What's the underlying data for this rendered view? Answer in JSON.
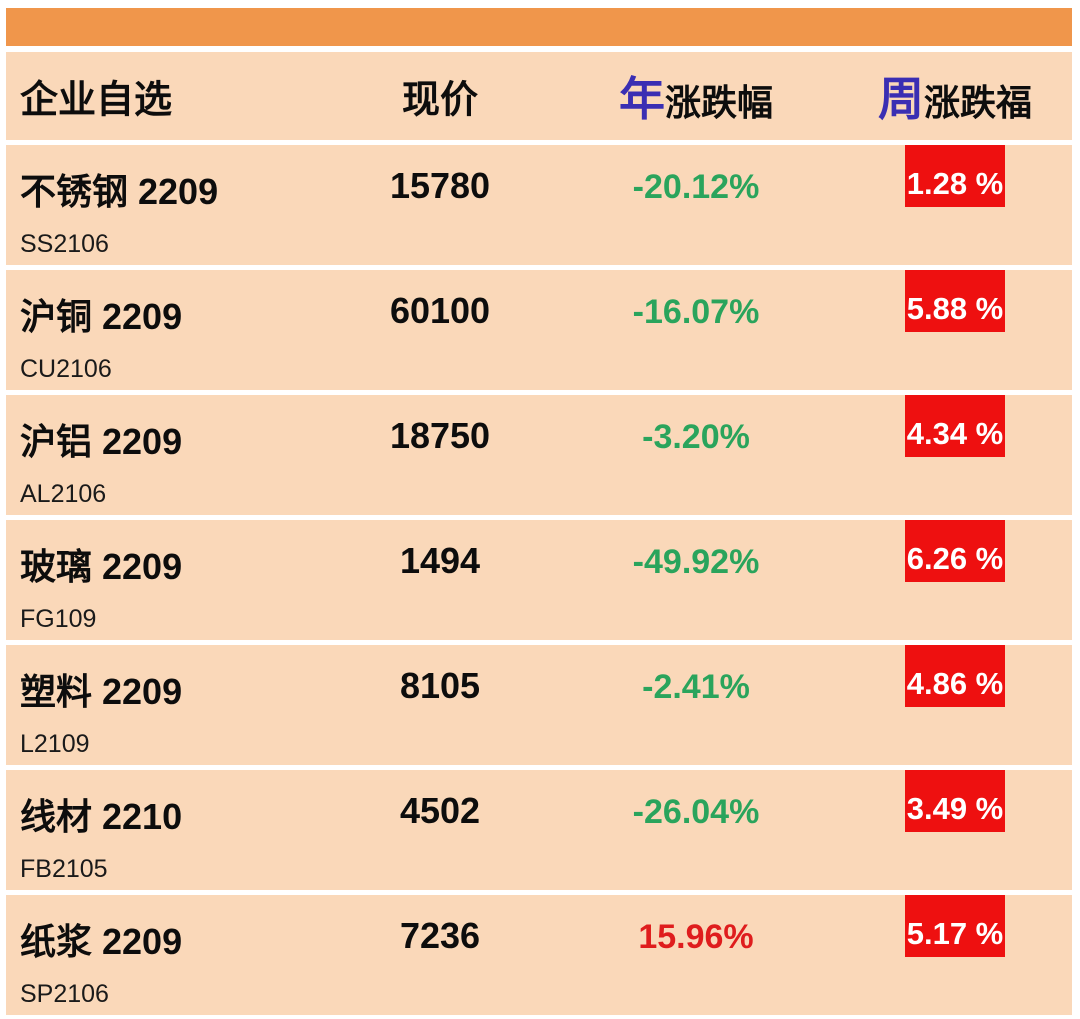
{
  "colors": {
    "accent_orange": "#F0964B",
    "row_peach": "#FAD8B9",
    "badge_red": "#EE1010",
    "down_green": "#2AA45C",
    "up_red": "#DF1D1D",
    "header_blue": "#3A2EB3"
  },
  "header": {
    "col_watchlist": "企业自选",
    "col_price": "现价",
    "col_year_prefix": "年",
    "col_year_suffix": "涨跌幅",
    "col_week_prefix": "周",
    "col_week_suffix": "涨跌福"
  },
  "rows": [
    {
      "name": "不锈钢 2209",
      "code": "SS2106",
      "price": "15780",
      "year_change": "-20.12%",
      "week_change": "1.28 %",
      "trend": "down"
    },
    {
      "name": "沪铜 2209",
      "code": "CU2106",
      "price": "60100",
      "year_change": "-16.07%",
      "week_change": "5.88 %",
      "trend": "down"
    },
    {
      "name": "沪铝 2209",
      "code": "AL2106",
      "price": "18750",
      "year_change": "-3.20%",
      "week_change": "4.34 %",
      "trend": "down"
    },
    {
      "name": "玻璃 2209",
      "code": "FG109",
      "price": "1494",
      "year_change": "-49.92%",
      "week_change": "6.26 %",
      "trend": "down"
    },
    {
      "name": "塑料 2209",
      "code": "L2109",
      "price": "8105",
      "year_change": "-2.41%",
      "week_change": "4.86 %",
      "trend": "down"
    },
    {
      "name": "线材 2210",
      "code": "FB2105",
      "price": "4502",
      "year_change": "-26.04%",
      "week_change": "3.49 %",
      "trend": "down"
    },
    {
      "name": "纸浆 2209",
      "code": "SP2106",
      "price": "7236",
      "year_change": "15.96%",
      "week_change": "5.17 %",
      "trend": "up"
    }
  ]
}
